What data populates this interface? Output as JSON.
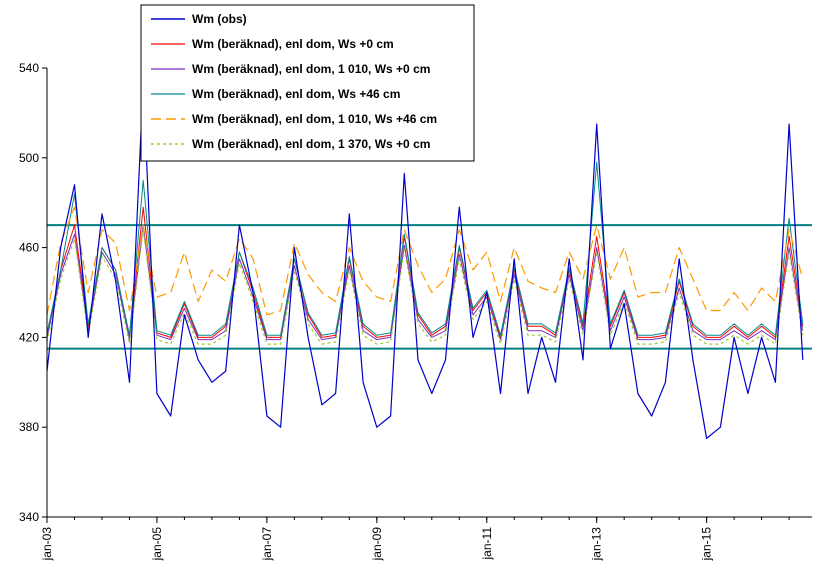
{
  "chart_data": {
    "type": "line",
    "title": "",
    "xlabel": "",
    "ylabel": "",
    "ylim": [
      340,
      540
    ],
    "yticks": [
      340,
      380,
      420,
      460,
      500,
      540
    ],
    "xlim": [
      "2003-01",
      "2016-12"
    ],
    "xticks": [
      {
        "date": "2003-01",
        "label": "jan-03"
      },
      {
        "date": "2005-01",
        "label": "jan-05"
      },
      {
        "date": "2007-01",
        "label": "jan-07"
      },
      {
        "date": "2009-01",
        "label": "jan-09"
      },
      {
        "date": "2011-01",
        "label": "jan-11"
      },
      {
        "date": "2013-01",
        "label": "jan-13"
      },
      {
        "date": "2015-01",
        "label": "jan-15"
      }
    ],
    "grid": false,
    "legend_position": "top-center",
    "reference_lines": [
      {
        "y": 470,
        "color": "#008080"
      },
      {
        "y": 415,
        "color": "#008080"
      }
    ],
    "x": [
      "2003-01",
      "2003-04",
      "2003-07",
      "2003-10",
      "2004-01",
      "2004-04",
      "2004-07",
      "2004-10",
      "2005-01",
      "2005-04",
      "2005-07",
      "2005-10",
      "2006-01",
      "2006-04",
      "2006-07",
      "2006-10",
      "2007-01",
      "2007-04",
      "2007-07",
      "2007-10",
      "2008-01",
      "2008-04",
      "2008-07",
      "2008-10",
      "2009-01",
      "2009-04",
      "2009-07",
      "2009-10",
      "2010-01",
      "2010-04",
      "2010-07",
      "2010-10",
      "2011-01",
      "2011-04",
      "2011-07",
      "2011-10",
      "2012-01",
      "2012-04",
      "2012-07",
      "2012-10",
      "2013-01",
      "2013-04",
      "2013-07",
      "2013-10",
      "2014-01",
      "2014-04",
      "2014-07",
      "2014-10",
      "2015-01",
      "2015-04",
      "2015-07",
      "2015-10",
      "2016-01",
      "2016-04",
      "2016-07",
      "2016-10"
    ],
    "series": [
      {
        "name": "Wm (obs)",
        "color": "#0000CC",
        "dash": "",
        "width": 1.2,
        "values": [
          405,
          460,
          488,
          420,
          475,
          445,
          400,
          533,
          395,
          385,
          430,
          410,
          400,
          405,
          470,
          440,
          385,
          380,
          460,
          420,
          390,
          395,
          475,
          400,
          380,
          385,
          493,
          410,
          395,
          410,
          478,
          420,
          440,
          395,
          455,
          395,
          420,
          400,
          455,
          410,
          515,
          415,
          435,
          395,
          385,
          400,
          455,
          410,
          375,
          380,
          420,
          395,
          420,
          400,
          515,
          410
        ]
      },
      {
        "name": "Wm (beräknad), enl dom, Ws +0 cm",
        "color": "#FF0000",
        "dash": "",
        "width": 1,
        "values": [
          420,
          450,
          470,
          425,
          460,
          450,
          420,
          478,
          422,
          420,
          435,
          420,
          420,
          425,
          458,
          440,
          420,
          420,
          455,
          430,
          420,
          421,
          455,
          425,
          420,
          421,
          465,
          430,
          421,
          425,
          460,
          432,
          440,
          420,
          450,
          425,
          425,
          421,
          450,
          425,
          465,
          425,
          440,
          420,
          420,
          421,
          445,
          425,
          420,
          420,
          425,
          420,
          425,
          420,
          465,
          425
        ]
      },
      {
        "name": "Wm (beräknad), enl dom, 1 010, Ws +0 cm",
        "color": "#7B2FBE",
        "dash": "",
        "width": 1,
        "values": [
          420,
          448,
          466,
          423,
          458,
          448,
          419,
          470,
          421,
          419,
          433,
          419,
          419,
          423,
          455,
          438,
          419,
          419,
          452,
          428,
          419,
          420,
          452,
          423,
          419,
          420,
          461,
          428,
          420,
          423,
          457,
          430,
          438,
          419,
          448,
          423,
          423,
          420,
          448,
          423,
          460,
          423,
          438,
          419,
          419,
          420,
          442,
          423,
          419,
          419,
          423,
          419,
          423,
          419,
          460,
          423
        ]
      },
      {
        "name": "Wm (beräknad), enl dom, Ws +46 cm",
        "color": "#008B8B",
        "dash": "",
        "width": 1,
        "values": [
          422,
          450,
          484,
          426,
          460,
          450,
          421,
          490,
          423,
          421,
          436,
          421,
          421,
          426,
          458,
          442,
          421,
          421,
          455,
          431,
          421,
          422,
          456,
          426,
          421,
          422,
          466,
          431,
          422,
          426,
          461,
          433,
          441,
          421,
          451,
          426,
          426,
          422,
          451,
          426,
          498,
          426,
          441,
          421,
          421,
          422,
          446,
          426,
          421,
          421,
          426,
          421,
          426,
          421,
          473,
          426
        ]
      },
      {
        "name": "Wm (beräknad), enl dom, 1 010, Ws +46 cm",
        "color": "#FF9900",
        "dash": "10,5",
        "width": 1.2,
        "values": [
          430,
          462,
          478,
          440,
          468,
          462,
          432,
          470,
          438,
          440,
          458,
          436,
          450,
          445,
          464,
          455,
          430,
          432,
          462,
          448,
          440,
          436,
          460,
          445,
          438,
          436,
          468,
          452,
          440,
          446,
          468,
          450,
          458,
          436,
          460,
          445,
          442,
          440,
          458,
          446,
          470,
          446,
          460,
          438,
          440,
          440,
          460,
          446,
          432,
          432,
          440,
          432,
          442,
          436,
          468,
          446
        ]
      },
      {
        "name": "Wm (beräknad), enl dom, 1 370, Ws +0 cm",
        "color": "#9ACD32",
        "dash": "3,3",
        "width": 1.2,
        "values": [
          418,
          446,
          464,
          421,
          456,
          446,
          417,
          468,
          419,
          417,
          431,
          417,
          417,
          421,
          453,
          436,
          417,
          417,
          450,
          426,
          417,
          418,
          450,
          421,
          417,
          418,
          459,
          426,
          418,
          421,
          455,
          428,
          436,
          417,
          446,
          421,
          421,
          418,
          446,
          421,
          458,
          421,
          436,
          417,
          417,
          418,
          440,
          421,
          417,
          417,
          421,
          417,
          421,
          417,
          458,
          421
        ]
      }
    ]
  }
}
